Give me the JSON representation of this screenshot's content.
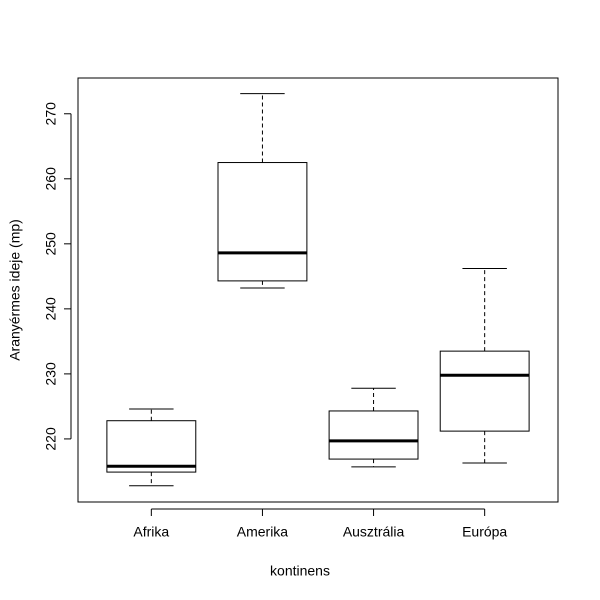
{
  "chart_data": {
    "type": "boxplot",
    "x_label": "kontinens",
    "y_label": "Aranyérmes ideje (mp)",
    "categories": [
      "Afrika",
      "Amerika",
      "Ausztrália",
      "Európa"
    ],
    "min": [
      212.8,
      243.2,
      215.7,
      216.3
    ],
    "q1": [
      214.9,
      244.3,
      216.9,
      221.2
    ],
    "median": [
      215.8,
      248.6,
      219.7,
      229.8
    ],
    "q3": [
      222.8,
      262.5,
      224.3,
      233.5
    ],
    "max": [
      224.6,
      273.1,
      227.8,
      246.2
    ],
    "color": "#000000",
    "ylim": [
      210.3,
      275.5
    ],
    "yticks": [
      220,
      230,
      240,
      250,
      260,
      270
    ]
  }
}
